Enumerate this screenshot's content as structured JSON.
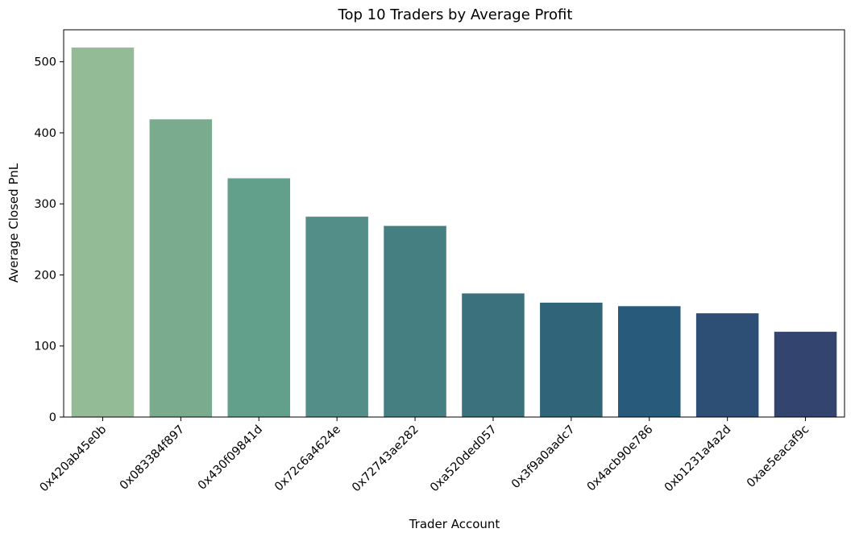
{
  "chart_data": {
    "type": "bar",
    "title": "Top 10 Traders by Average Profit",
    "xlabel": "Trader Account",
    "ylabel": "Average Closed PnL",
    "categories": [
      "0x420ab45e0b",
      "0x083384f897",
      "0x430f09841d",
      "0x72c6a4624e",
      "0x72743ae282",
      "0xa520ded057",
      "0x3f9a0aadc7",
      "0x4acb90e786",
      "0xb1231a4a2d",
      "0xae5eacaf9c"
    ],
    "values": [
      520,
      419,
      336,
      282,
      269,
      174,
      161,
      156,
      146,
      120
    ],
    "ylim": [
      0,
      545
    ],
    "yticks": [
      0,
      100,
      200,
      300,
      400,
      500
    ],
    "colors": [
      "#93bb95",
      "#7bab8f",
      "#63a08c",
      "#538f88",
      "#467f82",
      "#3b717d",
      "#2f6479",
      "#285a7b",
      "#2d4f76",
      "#33446e"
    ],
    "grid": false,
    "legend": "none"
  }
}
